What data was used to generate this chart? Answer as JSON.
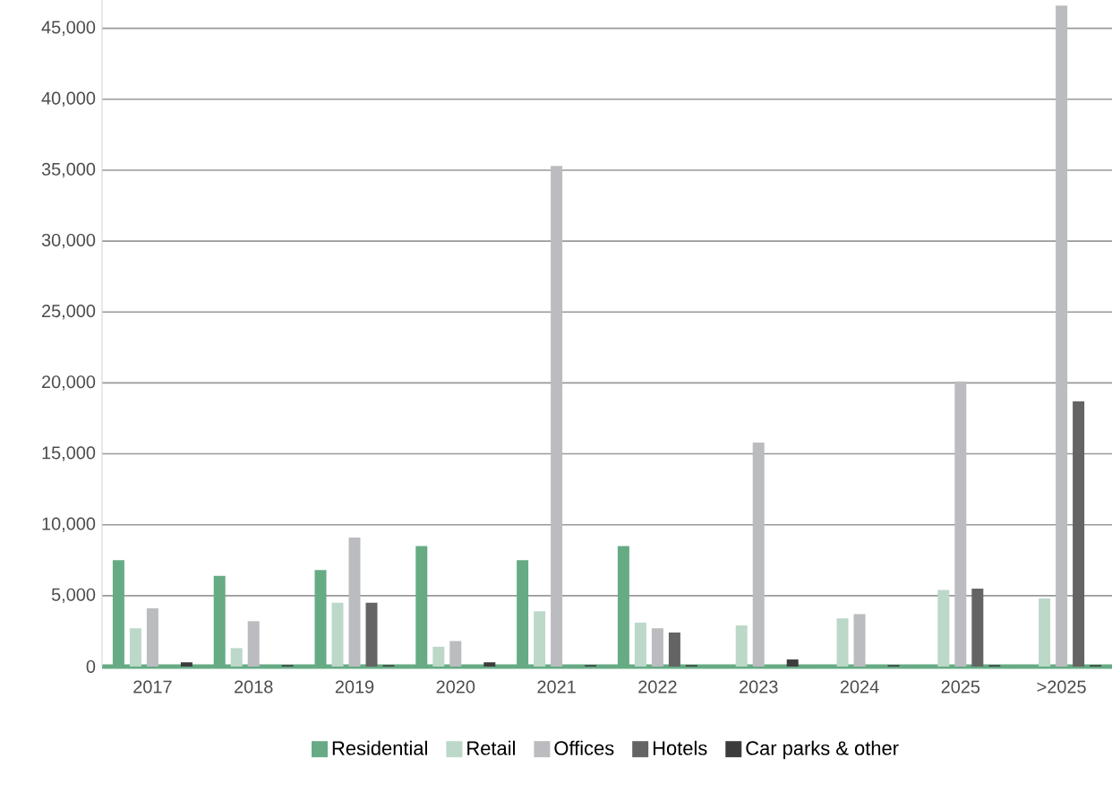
{
  "chart_data": {
    "type": "bar",
    "categories": [
      "2017",
      "2018",
      "2019",
      "2020",
      "2021",
      "2022",
      "2023",
      "2024",
      "2025",
      ">2025"
    ],
    "series": [
      {
        "name": "Residential",
        "color": "#66ab84",
        "values": [
          7500,
          6400,
          6800,
          8500,
          7500,
          8500,
          0,
          100,
          100,
          100
        ]
      },
      {
        "name": "Retail",
        "color": "#bcd8c8",
        "values": [
          2700,
          1300,
          4500,
          1400,
          3900,
          3100,
          2900,
          3400,
          5400,
          4800
        ]
      },
      {
        "name": "Offices",
        "color": "#bbbcc0",
        "values": [
          4100,
          3200,
          9100,
          1800,
          35300,
          2700,
          15800,
          3700,
          20100,
          46600
        ]
      },
      {
        "name": "Hotels",
        "color": "#646464",
        "values": [
          0,
          0,
          4500,
          0,
          0,
          2400,
          0,
          0,
          5500,
          18700
        ]
      },
      {
        "name": "Car parks & other",
        "color": "#3c3c3c",
        "values": [
          300,
          100,
          100,
          300,
          100,
          100,
          500,
          100,
          100,
          100
        ]
      }
    ],
    "yticks": [
      0,
      {
        "value": 5000,
        "label": "5,000"
      },
      {
        "value": 10000,
        "label": "10,000"
      },
      {
        "value": 15000,
        "label": "15,000"
      },
      {
        "value": 20000,
        "label": "20,000"
      },
      {
        "value": 25000,
        "label": "25,000"
      },
      {
        "value": 30000,
        "label": "30,000"
      },
      {
        "value": 35000,
        "label": "35,000"
      },
      {
        "value": 40000,
        "label": "40,000"
      },
      {
        "value": 45000,
        "label": "45,000"
      }
    ],
    "ylim": [
      0,
      47000
    ],
    "grid": "y",
    "legend": "bottom"
  }
}
